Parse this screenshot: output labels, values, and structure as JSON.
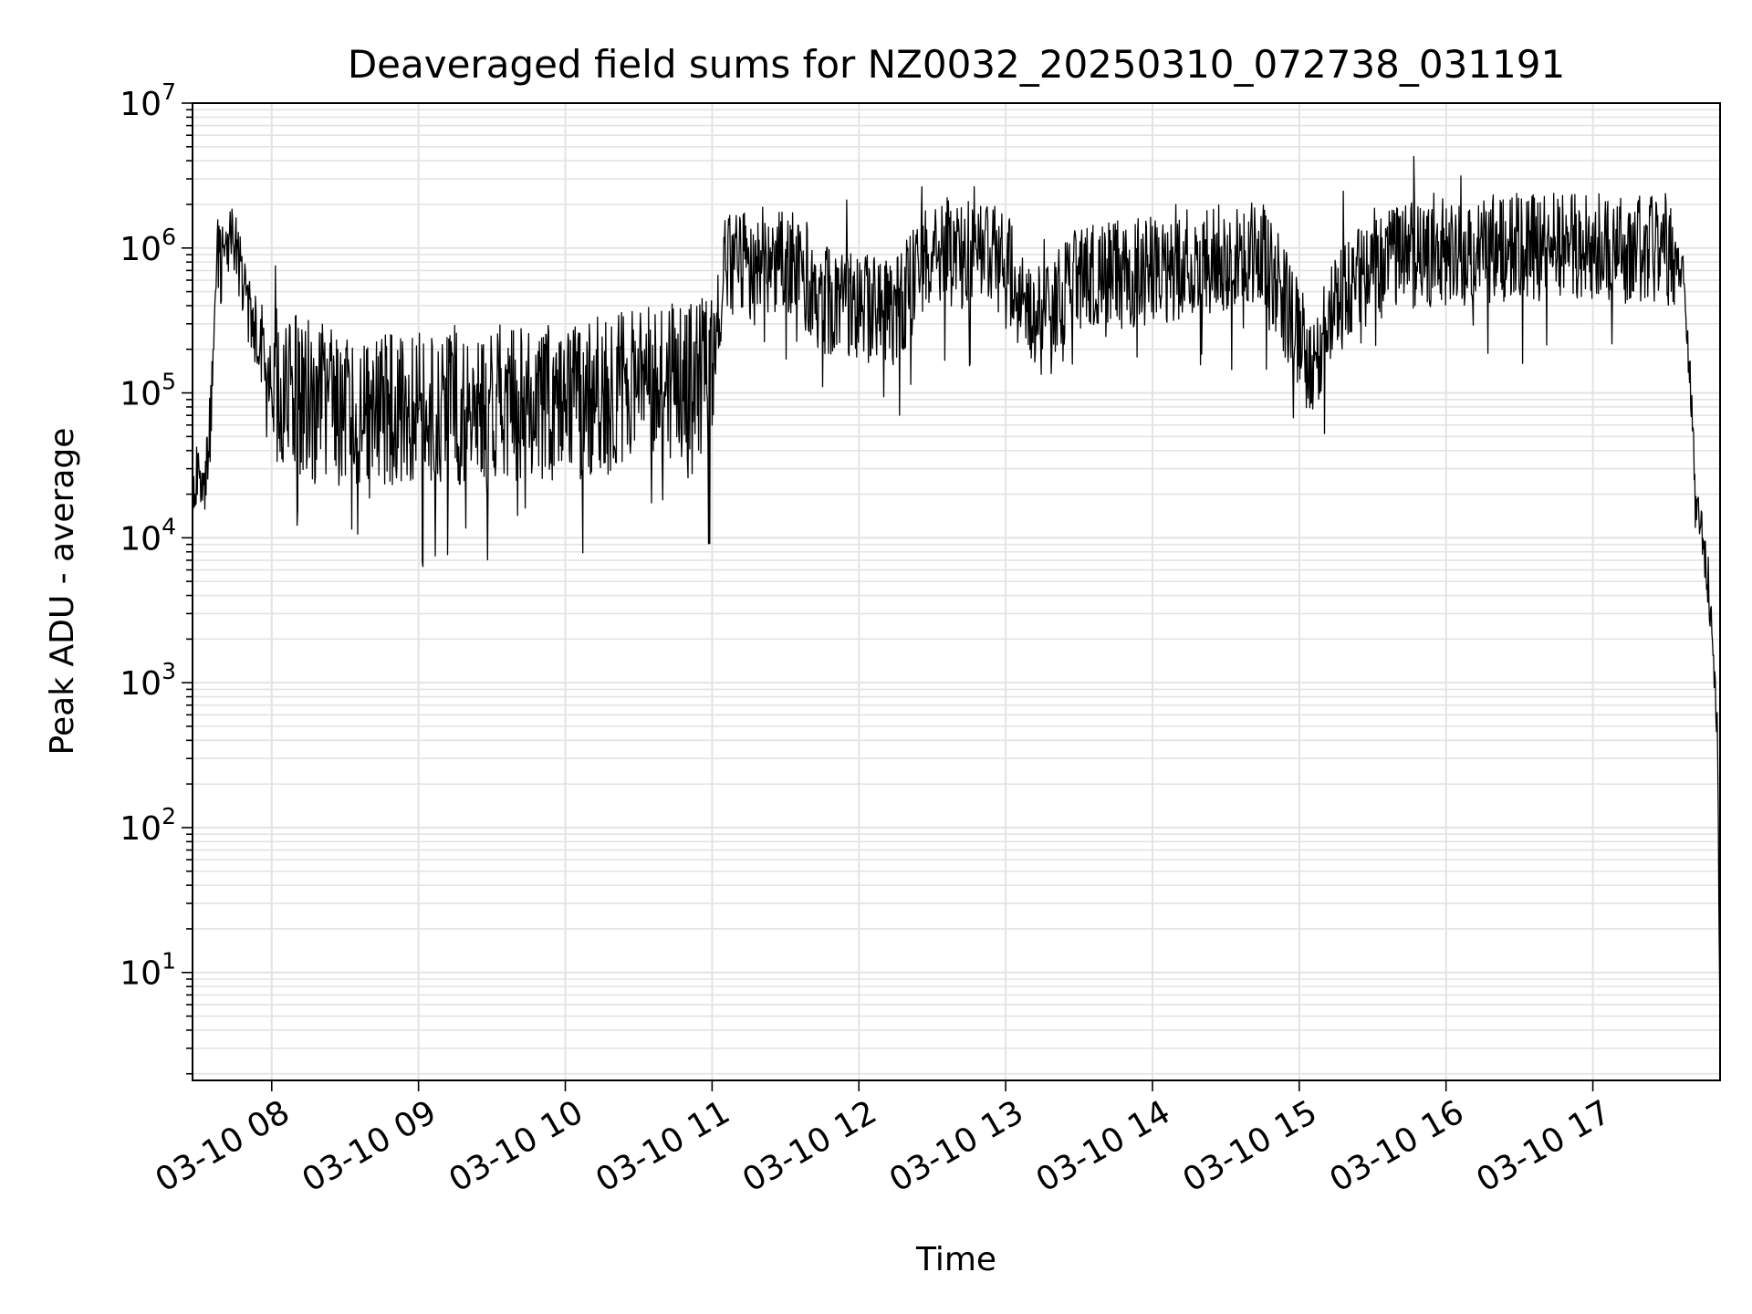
{
  "chart_data": {
    "type": "line",
    "title": "Deaveraged field sums for NZ0032_20250310_072738_031191",
    "xlabel": "Time",
    "ylabel": "Peak ADU - average",
    "x_range": [
      "2025-03-10 07:27:38",
      "2025-03-10 17:52:00"
    ],
    "x_ticks": [
      {
        "t": "2025-03-10 08:00",
        "label": "03-10 08"
      },
      {
        "t": "2025-03-10 09:00",
        "label": "03-10 09"
      },
      {
        "t": "2025-03-10 10:00",
        "label": "03-10 10"
      },
      {
        "t": "2025-03-10 11:00",
        "label": "03-10 11"
      },
      {
        "t": "2025-03-10 12:00",
        "label": "03-10 12"
      },
      {
        "t": "2025-03-10 13:00",
        "label": "03-10 13"
      },
      {
        "t": "2025-03-10 14:00",
        "label": "03-10 14"
      },
      {
        "t": "2025-03-10 15:00",
        "label": "03-10 15"
      },
      {
        "t": "2025-03-10 16:00",
        "label": "03-10 16"
      },
      {
        "t": "2025-03-10 17:00",
        "label": "03-10 17"
      }
    ],
    "y_scale": "log",
    "ylim": [
      1.8,
      10000000
    ],
    "y_ticks": [
      {
        "value": 10,
        "base": "10",
        "exp": "1"
      },
      {
        "value": 100,
        "base": "10",
        "exp": "2"
      },
      {
        "value": 1000,
        "base": "10",
        "exp": "3"
      },
      {
        "value": 10000,
        "base": "10",
        "exp": "4"
      },
      {
        "value": 100000,
        "base": "10",
        "exp": "5"
      },
      {
        "value": 1000000,
        "base": "10",
        "exp": "6"
      },
      {
        "value": 10000000,
        "base": "10",
        "exp": "7"
      }
    ],
    "grid": true,
    "line_color": "#000000",
    "grid_color": "#e3e3e3",
    "series": [
      {
        "points": [
          [
            "2025-03-10 07:27:38",
            15000
          ],
          [
            "2025-03-10 07:30",
            30000
          ],
          [
            "2025-03-10 07:32",
            20000
          ],
          [
            "2025-03-10 07:35",
            60000
          ],
          [
            "2025-03-10 07:37",
            800000
          ],
          [
            "2025-03-10 07:40",
            1200000
          ],
          [
            "2025-03-10 07:45",
            1000000
          ],
          [
            "2025-03-10 07:50",
            400000
          ],
          [
            "2025-03-10 07:55",
            200000
          ],
          [
            "2025-03-10 08:00",
            120000
          ],
          [
            "2025-03-10 08:15",
            90000
          ],
          [
            "2025-03-10 08:30",
            80000
          ],
          [
            "2025-03-10 09:00",
            80000
          ],
          [
            "2025-03-10 09:30",
            85000
          ],
          [
            "2025-03-10 10:00",
            90000
          ],
          [
            "2025-03-10 10:30",
            110000
          ],
          [
            "2025-03-10 11:00",
            130000
          ],
          [
            "2025-03-10 11:05",
            700000
          ],
          [
            "2025-03-10 11:30",
            900000
          ],
          [
            "2025-03-10 11:45",
            450000
          ],
          [
            "2025-03-10 12:15",
            350000
          ],
          [
            "2025-03-10 12:30",
            1000000
          ],
          [
            "2025-03-10 13:00",
            800000
          ],
          [
            "2025-03-10 13:15",
            300000
          ],
          [
            "2025-03-10 13:30",
            600000
          ],
          [
            "2025-03-10 14:00",
            700000
          ],
          [
            "2025-03-10 14:45",
            1000000
          ],
          [
            "2025-03-10 15:05",
            150000
          ],
          [
            "2025-03-10 15:20",
            600000
          ],
          [
            "2025-03-10 15:45",
            900000
          ],
          [
            "2025-03-10 16:30",
            1000000
          ],
          [
            "2025-03-10 17:30",
            1000000
          ],
          [
            "2025-03-10 17:37",
            700000
          ],
          [
            "2025-03-10 17:40",
            100000
          ],
          [
            "2025-03-10 17:42",
            20000
          ],
          [
            "2025-03-10 17:45",
            10000
          ],
          [
            "2025-03-10 17:48",
            3000
          ],
          [
            "2025-03-10 17:50",
            1000
          ],
          [
            "2025-03-10 17:51",
            400
          ],
          [
            "2025-03-10 17:52",
            4
          ]
        ]
      }
    ]
  }
}
